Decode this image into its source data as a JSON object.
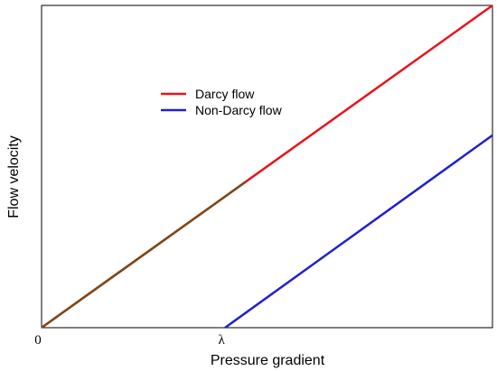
{
  "chart_data": {
    "type": "line",
    "title": "",
    "xlabel": "Pressure gradient",
    "ylabel": "Flow velocity",
    "xlim": [
      0,
      1
    ],
    "ylim": [
      0,
      1
    ],
    "grid": false,
    "legend_position": "upper-left-center",
    "x_ticks": [
      {
        "value": 0,
        "label": "0"
      },
      {
        "value": 0.407,
        "label": "λ"
      }
    ],
    "series": [
      {
        "name": "Darcy flow",
        "color": "#e8141b",
        "x": [
          0,
          1
        ],
        "y": [
          0,
          1
        ]
      },
      {
        "name": "Non-Darcy flow",
        "color": "#1f1fd2",
        "x": [
          0.407,
          1
        ],
        "y": [
          0,
          0.597
        ]
      }
    ],
    "overlay": {
      "color": "#7a4a1a",
      "x": [
        0,
        0.453
      ],
      "y": [
        0,
        0.453
      ]
    }
  }
}
